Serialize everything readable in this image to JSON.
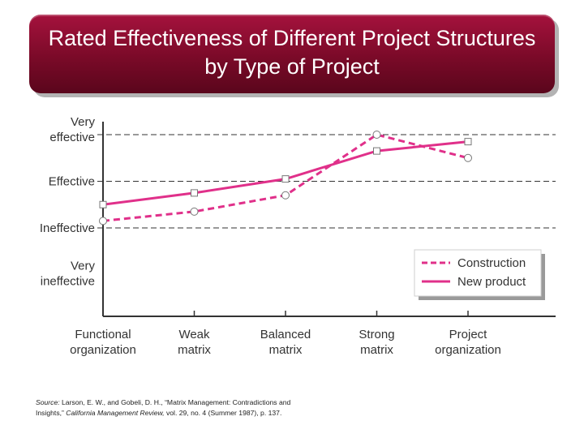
{
  "slide": {
    "title_line1": "Rated Effectiveness of Different Project Structures",
    "title_line2": "by Type of Project"
  },
  "source": {
    "label": "Source:",
    "text_a": " Larson, E. W., and Gobeli, D. H., “Matrix Management: Contradictions and",
    "text_b": "Insights,” ",
    "journal": "California Management Review,",
    "text_c": " vol. 29, no. 4 (Summer 1987), p. 137."
  },
  "colors": {
    "accent": "#e0308a",
    "title_bg": "#8a0c2e",
    "axis": "#333333"
  },
  "chart_data": {
    "type": "line",
    "categories": [
      "Functional organization",
      "Weak matrix",
      "Balanced matrix",
      "Strong matrix",
      "Project organization"
    ],
    "x_tick_lines": [
      [
        "Functional",
        "organization"
      ],
      [
        "Weak",
        "matrix"
      ],
      [
        "Balanced",
        "matrix"
      ],
      [
        "Strong",
        "matrix"
      ],
      [
        "Project",
        "organization"
      ]
    ],
    "y_levels": [
      {
        "lines": [
          "Very",
          "effective"
        ],
        "value": 4
      },
      {
        "lines": [
          "Effective"
        ],
        "value": 3
      },
      {
        "lines": [
          "Ineffective"
        ],
        "value": 2
      },
      {
        "lines": [
          "Very",
          "ineffective"
        ],
        "value": 1
      }
    ],
    "ylim": [
      0,
      4.2
    ],
    "series": [
      {
        "name": "Construction",
        "style": "dashed",
        "marker": "circle",
        "values": [
          2.15,
          2.35,
          2.7,
          4.0,
          3.5
        ]
      },
      {
        "name": "New product",
        "style": "solid",
        "marker": "square",
        "values": [
          2.5,
          2.75,
          3.05,
          3.65,
          3.85
        ]
      }
    ],
    "grid": "dashed horizontal at Very effective, Effective, Ineffective",
    "legend_position": "bottom-right"
  }
}
